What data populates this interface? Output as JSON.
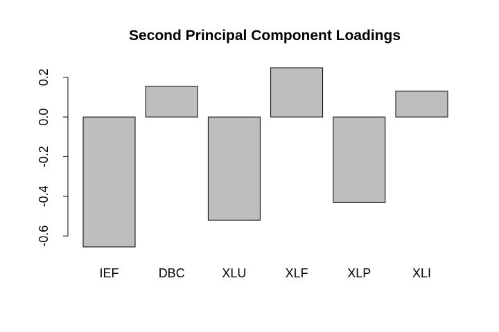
{
  "chart_data": {
    "type": "bar",
    "title": "Second Principal Component Loadings",
    "xlabel": "",
    "ylabel": "",
    "categories": [
      "IEF",
      "DBC",
      "XLU",
      "XLF",
      "XLP",
      "XLI"
    ],
    "values": [
      -0.655,
      0.155,
      -0.52,
      0.248,
      -0.43,
      0.13
    ],
    "ylim": [
      -0.655,
      0.248
    ],
    "yticks": [
      -0.6,
      -0.4,
      -0.2,
      0.0,
      0.2
    ],
    "ytick_labels": [
      "-0.6",
      "-0.4",
      "-0.2",
      "0.0",
      "0.2"
    ],
    "grid": false,
    "legend": "none",
    "bar_color": "#bebebe",
    "border_color": "#000000"
  }
}
